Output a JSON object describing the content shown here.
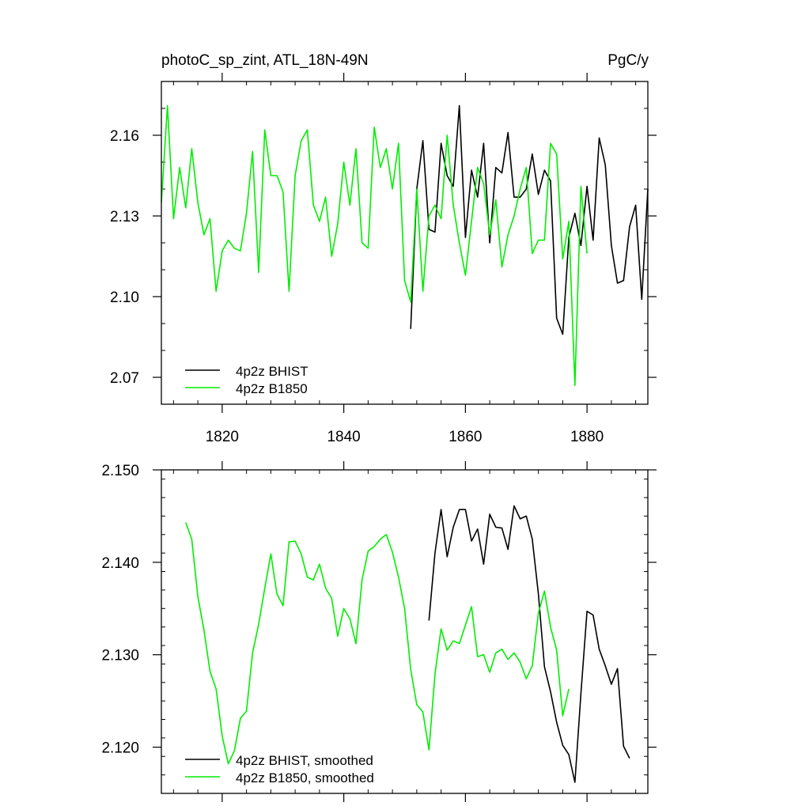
{
  "chart_data": [
    {
      "type": "line",
      "title": "photoC_sp_zint, ATL_18N-49N",
      "units": "PgC/y",
      "xlim": [
        1810,
        1890
      ],
      "ylim": [
        2.06,
        2.18
      ],
      "xticks": [
        1820,
        1840,
        1860,
        1880
      ],
      "xtick_labels": [
        "1820",
        "1840",
        "1860",
        "1880"
      ],
      "yticks": [
        2.07,
        2.1,
        2.13,
        2.16
      ],
      "ytick_labels": [
        "2.07",
        "2.10",
        "2.13",
        "2.16"
      ],
      "legend_position": "bottom-left",
      "grid": false,
      "series": [
        {
          "name": "4p2z BHIST",
          "color": "#000000",
          "x": [
            1851,
            1852,
            1853,
            1854,
            1855,
            1856,
            1857,
            1858,
            1859,
            1860,
            1861,
            1862,
            1863,
            1864,
            1865,
            1866,
            1867,
            1868,
            1869,
            1870,
            1871,
            1872,
            1873,
            1874,
            1875,
            1876,
            1877,
            1878,
            1879,
            1880,
            1881,
            1882,
            1883,
            1884,
            1885,
            1886,
            1887,
            1888,
            1889,
            1890
          ],
          "y": [
            2.088,
            2.14,
            2.158,
            2.125,
            2.124,
            2.157,
            2.145,
            2.141,
            2.171,
            2.122,
            2.147,
            2.137,
            2.157,
            2.12,
            2.148,
            2.146,
            2.161,
            2.137,
            2.137,
            2.14,
            2.153,
            2.138,
            2.147,
            2.143,
            2.092,
            2.086,
            2.122,
            2.131,
            2.119,
            2.141,
            2.121,
            2.159,
            2.149,
            2.119,
            2.105,
            2.106,
            2.126,
            2.134,
            2.099,
            2.14
          ]
        },
        {
          "name": "4p2z B1850",
          "color": "#00ee00",
          "x": [
            1810,
            1811,
            1812,
            1813,
            1814,
            1815,
            1816,
            1817,
            1818,
            1819,
            1820,
            1821,
            1822,
            1823,
            1824,
            1825,
            1826,
            1827,
            1828,
            1829,
            1830,
            1831,
            1832,
            1833,
            1834,
            1835,
            1836,
            1837,
            1838,
            1839,
            1840,
            1841,
            1842,
            1843,
            1844,
            1845,
            1846,
            1847,
            1848,
            1849,
            1850,
            1851,
            1852,
            1853,
            1854,
            1855,
            1856,
            1857,
            1858,
            1859,
            1860,
            1861,
            1862,
            1863,
            1864,
            1865,
            1866,
            1867,
            1868,
            1869,
            1870,
            1871,
            1872,
            1873,
            1874,
            1875,
            1876,
            1877,
            1878,
            1879,
            1880
          ],
          "y": [
            2.135,
            2.171,
            2.129,
            2.148,
            2.133,
            2.155,
            2.135,
            2.123,
            2.129,
            2.102,
            2.117,
            2.121,
            2.118,
            2.117,
            2.131,
            2.154,
            2.109,
            2.162,
            2.145,
            2.145,
            2.139,
            2.102,
            2.145,
            2.158,
            2.162,
            2.134,
            2.128,
            2.137,
            2.115,
            2.127,
            2.15,
            2.134,
            2.155,
            2.12,
            2.118,
            2.163,
            2.148,
            2.155,
            2.14,
            2.157,
            2.106,
            2.098,
            2.14,
            2.102,
            2.13,
            2.134,
            2.129,
            2.16,
            2.134,
            2.12,
            2.108,
            2.128,
            2.148,
            2.142,
            2.123,
            2.136,
            2.111,
            2.123,
            2.13,
            2.14,
            2.148,
            2.116,
            2.121,
            2.121,
            2.157,
            2.153,
            2.114,
            2.128,
            2.067,
            2.141,
            2.116
          ]
        }
      ]
    },
    {
      "type": "line",
      "title": "",
      "xlim": [
        1810,
        1890
      ],
      "ylim": [
        2.115,
        2.15
      ],
      "xticks": [
        1820,
        1840,
        1860,
        1880
      ],
      "yticks": [
        2.12,
        2.13,
        2.14,
        2.15
      ],
      "ytick_labels": [
        "2.120",
        "2.130",
        "2.140",
        "2.150"
      ],
      "legend_position": "bottom-left",
      "grid": false,
      "series": [
        {
          "name": "4p2z BHIST, smoothed",
          "color": "#000000",
          "x": [
            1854,
            1855,
            1856,
            1857,
            1858,
            1859,
            1860,
            1861,
            1862,
            1863,
            1864,
            1865,
            1866,
            1867,
            1868,
            1869,
            1870,
            1871,
            1872,
            1873,
            1874,
            1875,
            1876,
            1877,
            1878,
            1879,
            1880,
            1881,
            1882,
            1883,
            1884,
            1885,
            1886,
            1887
          ],
          "y": [
            2.1337,
            2.141,
            2.1457,
            2.1406,
            2.1438,
            2.1457,
            2.1457,
            2.1423,
            2.1436,
            2.1398,
            2.1452,
            2.1438,
            2.1437,
            2.1414,
            2.1461,
            2.1447,
            2.145,
            2.1425,
            2.1366,
            2.1287,
            2.126,
            2.1227,
            2.1202,
            2.1192,
            2.1162,
            2.1258,
            2.1347,
            2.1343,
            2.1306,
            2.1288,
            2.1268,
            2.1285,
            2.1201,
            2.1188
          ]
        },
        {
          "name": "4p2z B1850, smoothed",
          "color": "#00ee00",
          "x": [
            1814,
            1815,
            1816,
            1817,
            1818,
            1819,
            1820,
            1821,
            1822,
            1823,
            1824,
            1825,
            1826,
            1827,
            1828,
            1829,
            1830,
            1831,
            1832,
            1833,
            1834,
            1835,
            1836,
            1837,
            1838,
            1839,
            1840,
            1841,
            1842,
            1843,
            1844,
            1845,
            1846,
            1847,
            1848,
            1849,
            1850,
            1851,
            1852,
            1853,
            1854,
            1855,
            1856,
            1857,
            1858,
            1859,
            1860,
            1861,
            1862,
            1863,
            1864,
            1865,
            1866,
            1867,
            1868,
            1869,
            1870,
            1871,
            1872,
            1873,
            1874,
            1875,
            1876,
            1877
          ],
          "y": [
            2.1443,
            2.1425,
            2.1363,
            2.1327,
            2.1282,
            2.1263,
            2.1212,
            2.1182,
            2.1196,
            2.1231,
            2.1239,
            2.1302,
            2.1333,
            2.1372,
            2.1409,
            2.1366,
            2.1353,
            2.1422,
            2.1423,
            2.1409,
            2.1384,
            2.1381,
            2.1398,
            2.1372,
            2.1361,
            2.132,
            2.135,
            2.1339,
            2.1312,
            2.1381,
            2.1412,
            2.1417,
            2.1425,
            2.143,
            2.1411,
            2.1384,
            2.135,
            2.1284,
            2.1246,
            2.1238,
            2.1197,
            2.1279,
            2.1328,
            2.1305,
            2.1315,
            2.1312,
            2.1332,
            2.1352,
            2.1298,
            2.13,
            2.1281,
            2.1302,
            2.1306,
            2.1295,
            2.1302,
            2.1292,
            2.1274,
            2.1288,
            2.1345,
            2.1369,
            2.133,
            2.1305,
            2.1234,
            2.1263
          ]
        }
      ]
    }
  ]
}
